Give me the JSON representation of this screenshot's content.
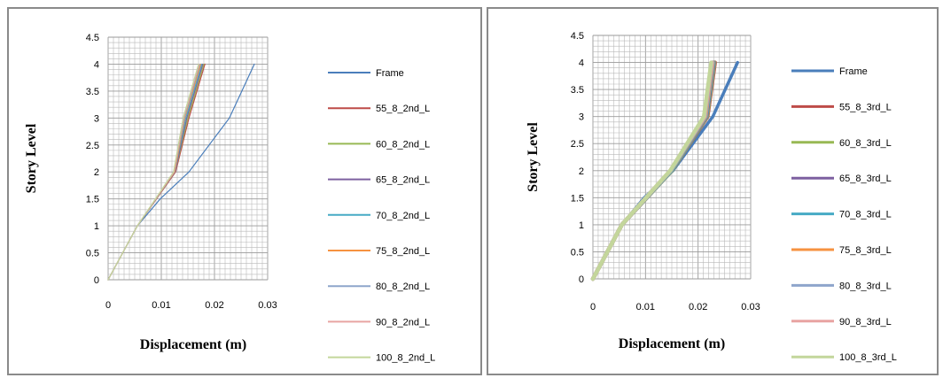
{
  "chart_data": [
    {
      "type": "line",
      "xlabel": "Displacement (m)",
      "ylabel": "Story  Level",
      "xlim": [
        0,
        0.03
      ],
      "ylim": [
        0,
        4.5
      ],
      "x_ticks": [
        "0",
        "0.01",
        "0.02",
        "0.03"
      ],
      "y_ticks": [
        "0",
        "0.5",
        "1",
        "1.5",
        "2",
        "2.5",
        "3",
        "3.5",
        "4",
        "4.5"
      ],
      "grid": true,
      "legend_position": "right",
      "series": [
        {
          "name": "Frame",
          "color": "#4a7ebb",
          "x": [
            0,
            0.0055,
            0.0098,
            0.0152,
            0.0228,
            0.0275
          ],
          "y": [
            0,
            1,
            1.5,
            2,
            3,
            4
          ]
        },
        {
          "name": "55_8_2nd_L",
          "color": "#be4b48",
          "x": [
            0,
            0.0055,
            0.0127,
            0.0152,
            0.0182
          ],
          "y": [
            0,
            1,
            2,
            3,
            4
          ]
        },
        {
          "name": "60_8_2nd_L",
          "color": "#98b954",
          "x": [
            0,
            0.0055,
            0.0126,
            0.015,
            0.018
          ],
          "y": [
            0,
            1,
            2,
            3,
            4
          ]
        },
        {
          "name": "65_8_2nd_L",
          "color": "#7d60a0",
          "x": [
            0,
            0.0055,
            0.0126,
            0.0148,
            0.0178
          ],
          "y": [
            0,
            1,
            2,
            3,
            4
          ]
        },
        {
          "name": "70_8_2nd_L",
          "color": "#46aac5",
          "x": [
            0,
            0.0055,
            0.0125,
            0.0146,
            0.0176
          ],
          "y": [
            0,
            1,
            2,
            3,
            4
          ]
        },
        {
          "name": "75_8_2nd_L",
          "color": "#f69240",
          "x": [
            0,
            0.0055,
            0.0125,
            0.0144,
            0.0174
          ],
          "y": [
            0,
            1,
            2,
            3,
            4
          ]
        },
        {
          "name": "80_8_2nd_L",
          "color": "#8ea5cb",
          "x": [
            0,
            0.0055,
            0.0124,
            0.0143,
            0.0172
          ],
          "y": [
            0,
            1,
            2,
            3,
            4
          ]
        },
        {
          "name": "90_8_2nd_L",
          "color": "#e8a4a2",
          "x": [
            0,
            0.0055,
            0.0124,
            0.0142,
            0.0171
          ],
          "y": [
            0,
            1,
            2,
            3,
            4
          ]
        },
        {
          "name": "100_8_2nd_L",
          "color": "#c3d69b",
          "x": [
            0,
            0.0055,
            0.0123,
            0.0141,
            0.017
          ],
          "y": [
            0,
            1,
            2,
            3,
            4
          ]
        }
      ]
    },
    {
      "type": "line",
      "xlabel": "Displacement  (m)",
      "ylabel": "Story  Level",
      "xlim": [
        0,
        0.03
      ],
      "ylim": [
        0,
        4.5
      ],
      "x_ticks": [
        "0",
        "0.01",
        "0.02",
        "0.03"
      ],
      "y_ticks": [
        "0",
        "0.5",
        "1",
        "1.5",
        "2",
        "2.5",
        "3",
        "3.5",
        "4",
        "4.5"
      ],
      "grid": true,
      "legend_position": "right",
      "series": [
        {
          "name": "Frame",
          "color": "#4a7ebb",
          "x": [
            0,
            0.0055,
            0.0098,
            0.0152,
            0.0228,
            0.0275
          ],
          "y": [
            0,
            1,
            1.5,
            2,
            3,
            4
          ]
        },
        {
          "name": "55_8_3rd_L",
          "color": "#be4b48",
          "x": [
            0,
            0.0055,
            0.015,
            0.0218,
            0.0232
          ],
          "y": [
            0,
            1,
            2,
            3,
            4
          ]
        },
        {
          "name": "60_8_3rd_L",
          "color": "#98b954",
          "x": [
            0,
            0.0055,
            0.015,
            0.0217,
            0.0231
          ],
          "y": [
            0,
            1,
            2,
            3,
            4
          ]
        },
        {
          "name": "65_8_3rd_L",
          "color": "#7d60a0",
          "x": [
            0,
            0.0055,
            0.0149,
            0.0216,
            0.023
          ],
          "y": [
            0,
            1,
            2,
            3,
            4
          ]
        },
        {
          "name": "70_8_3rd_L",
          "color": "#46aac5",
          "x": [
            0,
            0.0055,
            0.0149,
            0.0215,
            0.0229
          ],
          "y": [
            0,
            1,
            2,
            3,
            4
          ]
        },
        {
          "name": "75_8_3rd_L",
          "color": "#f69240",
          "x": [
            0,
            0.0055,
            0.0148,
            0.0214,
            0.0228
          ],
          "y": [
            0,
            1,
            2,
            3,
            4
          ]
        },
        {
          "name": "80_8_3rd_L",
          "color": "#8ea5cb",
          "x": [
            0,
            0.0055,
            0.0148,
            0.0213,
            0.0227
          ],
          "y": [
            0,
            1,
            2,
            3,
            4
          ]
        },
        {
          "name": "90_8_3rd_L",
          "color": "#e8a4a2",
          "x": [
            0,
            0.0055,
            0.0147,
            0.0212,
            0.0226
          ],
          "y": [
            0,
            1,
            2,
            3,
            4
          ]
        },
        {
          "name": "100_8_3rd_L",
          "color": "#c3d69b",
          "x": [
            0,
            0.0055,
            0.0147,
            0.0211,
            0.0225
          ],
          "y": [
            0,
            1,
            2,
            3,
            4
          ]
        }
      ]
    }
  ]
}
